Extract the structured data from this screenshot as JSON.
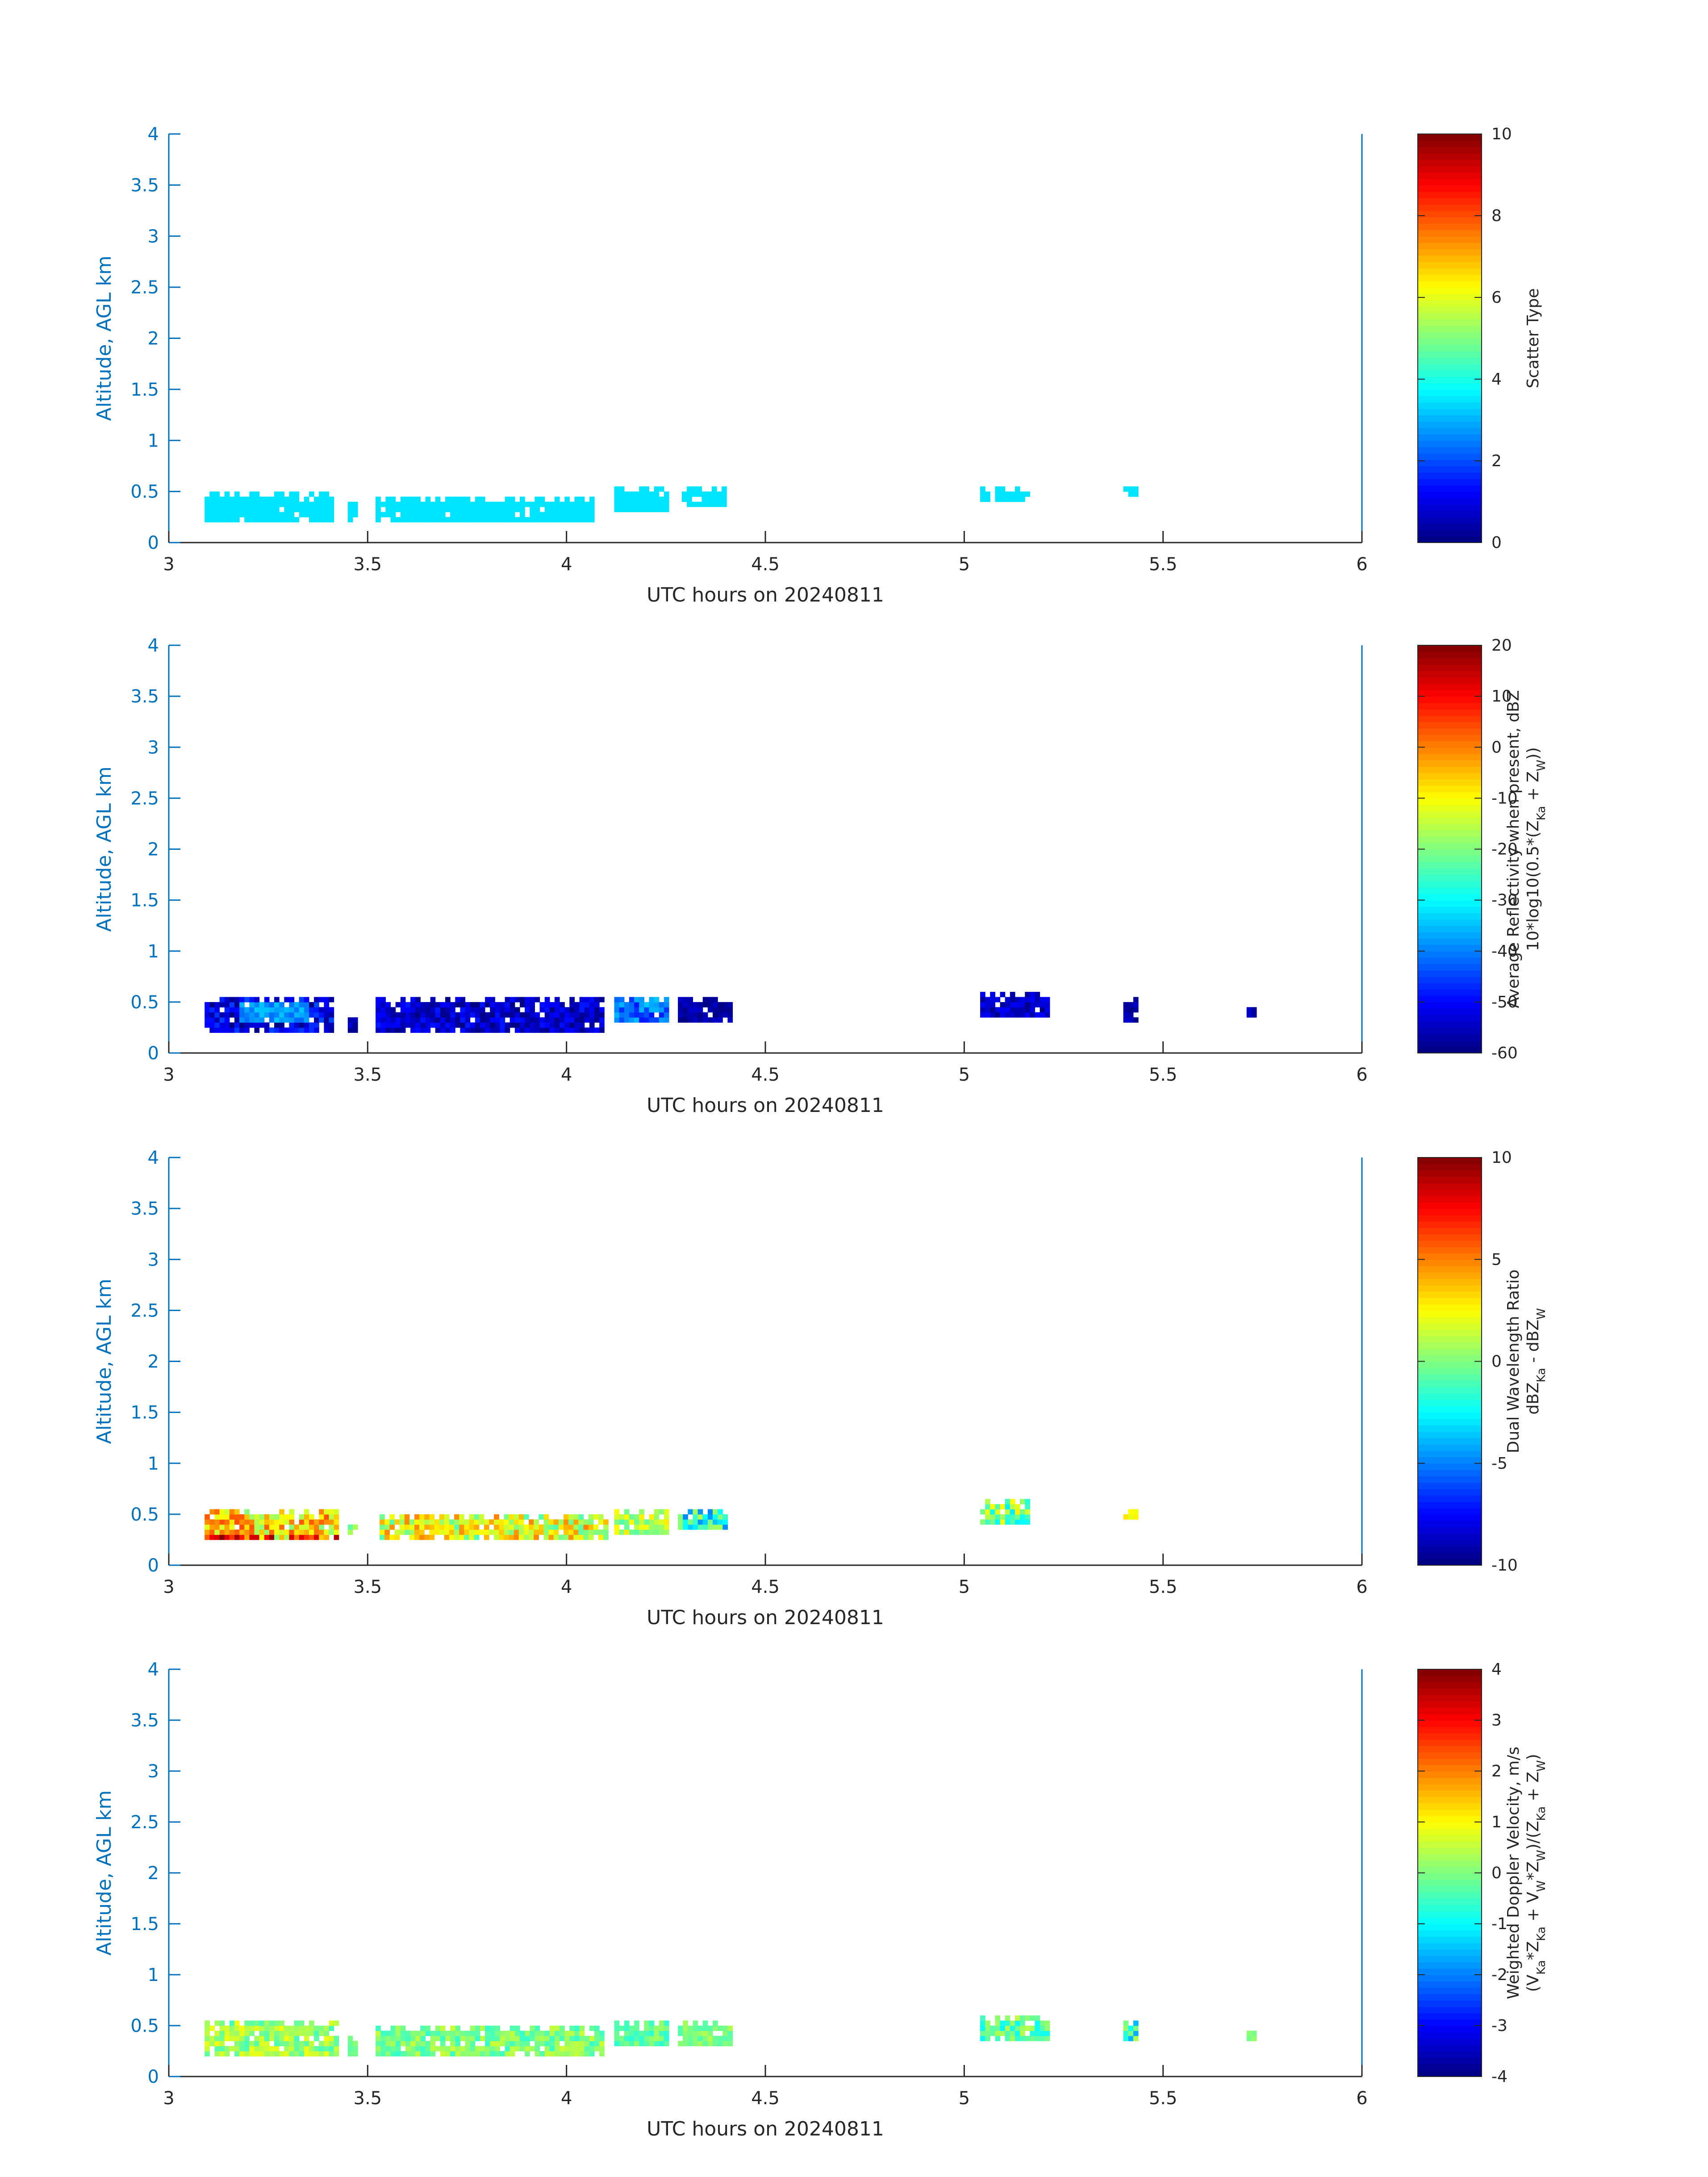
{
  "chart_data": [
    {
      "type": "heatmap",
      "xlabel": "UTC hours on 20240811",
      "ylabel": "Altitude, AGL km",
      "xlim": [
        3,
        6
      ],
      "ylim": [
        0,
        4
      ],
      "xticks": [
        "3",
        "3.5",
        "4",
        "4.5",
        "5",
        "5.5",
        "6"
      ],
      "yticks": [
        "0",
        "0.5",
        "1",
        "1.5",
        "2",
        "2.5",
        "3",
        "3.5",
        "4"
      ],
      "colorbar": {
        "colormap": "jet",
        "range": [
          0,
          10
        ],
        "ticks": [
          "0",
          "2",
          "4",
          "6",
          "8",
          "10"
        ],
        "label_lines": [
          "Scatter Type"
        ]
      },
      "clusters": [
        {
          "x_start": 3.09,
          "x_end": 3.42,
          "y_bottom": 0.2,
          "y_top": 0.5,
          "value": 3.5,
          "spread": 0
        },
        {
          "x_start": 3.45,
          "x_end": 3.48,
          "y_bottom": 0.2,
          "y_top": 0.4,
          "value": 3.5,
          "spread": 0
        },
        {
          "x_start": 3.52,
          "x_end": 4.07,
          "y_bottom": 0.2,
          "y_top": 0.45,
          "value": 3.5,
          "spread": 0
        },
        {
          "x_start": 4.12,
          "x_end": 4.26,
          "y_bottom": 0.3,
          "y_top": 0.55,
          "value": 3.5,
          "spread": 0
        },
        {
          "x_start": 4.29,
          "x_end": 4.4,
          "y_bottom": 0.35,
          "y_top": 0.55,
          "value": 3.5,
          "spread": 0
        },
        {
          "x_start": 5.04,
          "x_end": 5.16,
          "y_bottom": 0.4,
          "y_top": 0.55,
          "value": 3.5,
          "spread": 0
        },
        {
          "x_start": 5.4,
          "x_end": 5.44,
          "y_bottom": 0.45,
          "y_top": 0.55,
          "value": 3.5,
          "spread": 0
        }
      ]
    },
    {
      "type": "heatmap",
      "xlabel": "UTC hours on 20240811",
      "ylabel": "Altitude, AGL km",
      "xlim": [
        3,
        6
      ],
      "ylim": [
        0,
        4
      ],
      "xticks": [
        "3",
        "3.5",
        "4",
        "4.5",
        "5",
        "5.5",
        "6"
      ],
      "yticks": [
        "0",
        "0.5",
        "1",
        "1.5",
        "2",
        "2.5",
        "3",
        "3.5",
        "4"
      ],
      "colorbar": {
        "colormap": "jet",
        "range": [
          -60,
          20
        ],
        "ticks": [
          "-60",
          "-50",
          "-40",
          "-30",
          "-20",
          "-10",
          "0",
          "10",
          "20"
        ],
        "label_lines": [
          "Average Reflectivity when present, dBZ",
          "10*log10(0.5*(Z<sub>Ka</sub> + Z<sub>W</sub>))"
        ]
      },
      "clusters": [
        {
          "x_start": 3.09,
          "x_end": 3.42,
          "y_bottom": 0.2,
          "y_top": 0.55,
          "value": -52,
          "spread": 8,
          "core_value": -38
        },
        {
          "x_start": 3.45,
          "x_end": 3.48,
          "y_bottom": 0.2,
          "y_top": 0.4,
          "value": -56,
          "spread": 3
        },
        {
          "x_start": 3.52,
          "x_end": 4.1,
          "y_bottom": 0.2,
          "y_top": 0.55,
          "value": -54,
          "spread": 6
        },
        {
          "x_start": 4.12,
          "x_end": 4.26,
          "y_bottom": 0.3,
          "y_top": 0.55,
          "value": -42,
          "spread": 8
        },
        {
          "x_start": 4.28,
          "x_end": 4.42,
          "y_bottom": 0.3,
          "y_top": 0.55,
          "value": -57,
          "spread": 3
        },
        {
          "x_start": 5.04,
          "x_end": 5.21,
          "y_bottom": 0.35,
          "y_top": 0.6,
          "value": -55,
          "spread": 5
        },
        {
          "x_start": 5.4,
          "x_end": 5.44,
          "y_bottom": 0.3,
          "y_top": 0.55,
          "value": -57,
          "spread": 3
        },
        {
          "x_start": 5.71,
          "x_end": 5.74,
          "y_bottom": 0.35,
          "y_top": 0.45,
          "value": -56,
          "spread": 2
        }
      ]
    },
    {
      "type": "heatmap",
      "xlabel": "UTC hours on 20240811",
      "ylabel": "Altitude, AGL km",
      "xlim": [
        3,
        6
      ],
      "ylim": [
        0,
        4
      ],
      "xticks": [
        "3",
        "3.5",
        "4",
        "4.5",
        "5",
        "5.5",
        "6"
      ],
      "yticks": [
        "0",
        "0.5",
        "1",
        "1.5",
        "2",
        "2.5",
        "3",
        "3.5",
        "4"
      ],
      "colorbar": {
        "colormap": "jet",
        "range": [
          -10,
          10
        ],
        "ticks": [
          "-10",
          "-5",
          "0",
          "5",
          "10"
        ],
        "label_lines": [
          "Dual Wavelength Ratio",
          "dBZ<sub>Ka</sub> - dBZ<sub>W</sub>"
        ]
      },
      "clusters": [
        {
          "x_start": 3.09,
          "x_end": 3.43,
          "y_bottom": 0.25,
          "y_top": 0.55,
          "value": 3,
          "spread": 3,
          "hot_bottom": true
        },
        {
          "x_start": 3.45,
          "x_end": 3.48,
          "y_bottom": 0.3,
          "y_top": 0.4,
          "value": 0,
          "spread": 1
        },
        {
          "x_start": 3.53,
          "x_end": 4.1,
          "y_bottom": 0.25,
          "y_top": 0.5,
          "value": 2,
          "spread": 3
        },
        {
          "x_start": 4.12,
          "x_end": 4.26,
          "y_bottom": 0.3,
          "y_top": 0.55,
          "value": 1,
          "spread": 2
        },
        {
          "x_start": 4.28,
          "x_end": 4.41,
          "y_bottom": 0.35,
          "y_top": 0.55,
          "value": -2,
          "spread": 3
        },
        {
          "x_start": 5.04,
          "x_end": 5.17,
          "y_bottom": 0.4,
          "y_top": 0.65,
          "value": 0,
          "spread": 3
        },
        {
          "x_start": 5.4,
          "x_end": 5.44,
          "y_bottom": 0.45,
          "y_top": 0.55,
          "value": 2,
          "spread": 1
        }
      ]
    },
    {
      "type": "heatmap",
      "xlabel": "UTC hours on 20240811",
      "ylabel": "Altitude, AGL km",
      "xlim": [
        3,
        6
      ],
      "ylim": [
        0,
        4
      ],
      "xticks": [
        "3",
        "3.5",
        "4",
        "4.5",
        "5",
        "5.5",
        "6"
      ],
      "yticks": [
        "0",
        "0.5",
        "1",
        "1.5",
        "2",
        "2.5",
        "3",
        "3.5",
        "4"
      ],
      "colorbar": {
        "colormap": "jet",
        "range": [
          -4,
          4
        ],
        "ticks": [
          "-4",
          "-3",
          "-2",
          "-1",
          "0",
          "1",
          "2",
          "3",
          "4"
        ],
        "label_lines": [
          "Weighted Doppler Velocity, m/s",
          "(V<sub>Ka</sub>*Z<sub>Ka</sub> + V<sub>W</sub>*Z<sub>W</sub>)/(Z<sub>Ka</sub> + Z<sub>W</sub>)"
        ]
      },
      "clusters": [
        {
          "x_start": 3.09,
          "x_end": 3.43,
          "y_bottom": 0.2,
          "y_top": 0.55,
          "value": 0.2,
          "spread": 0.7
        },
        {
          "x_start": 3.45,
          "x_end": 3.48,
          "y_bottom": 0.2,
          "y_top": 0.4,
          "value": 0.0,
          "spread": 0.3
        },
        {
          "x_start": 3.52,
          "x_end": 4.1,
          "y_bottom": 0.2,
          "y_top": 0.5,
          "value": 0.0,
          "spread": 0.6
        },
        {
          "x_start": 4.12,
          "x_end": 4.26,
          "y_bottom": 0.3,
          "y_top": 0.55,
          "value": -0.2,
          "spread": 0.5
        },
        {
          "x_start": 4.28,
          "x_end": 4.42,
          "y_bottom": 0.3,
          "y_top": 0.55,
          "value": 0.0,
          "spread": 0.4
        },
        {
          "x_start": 5.04,
          "x_end": 5.21,
          "y_bottom": 0.35,
          "y_top": 0.6,
          "value": -0.3,
          "spread": 0.8
        },
        {
          "x_start": 5.4,
          "x_end": 5.44,
          "y_bottom": 0.35,
          "y_top": 0.55,
          "value": -0.5,
          "spread": 1.2
        },
        {
          "x_start": 5.71,
          "x_end": 5.74,
          "y_bottom": 0.35,
          "y_top": 0.45,
          "value": 0.0,
          "spread": 0.2
        }
      ]
    }
  ]
}
